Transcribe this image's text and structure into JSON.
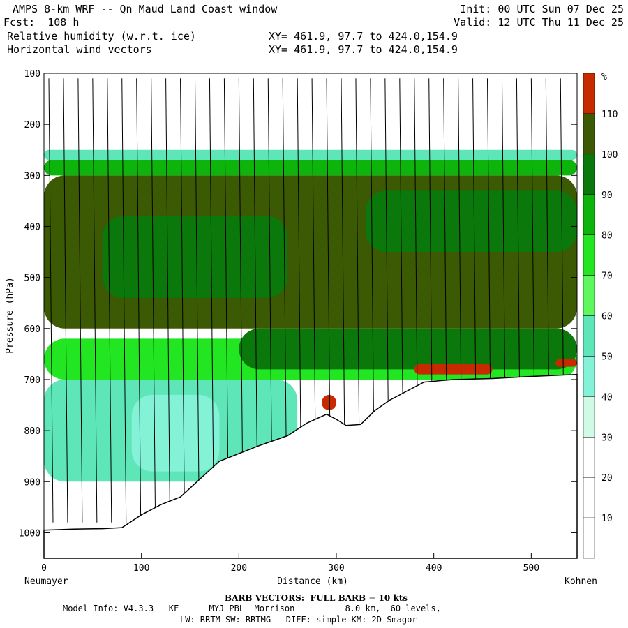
{
  "header": {
    "title": "AMPS 8-km WRF -- Qn Maud Land Coast window",
    "forecast": "Fcst:  108 h",
    "field1": "Relative humidity (w.r.t. ice)",
    "field2": "Horizontal wind vectors",
    "init": "Init: 00 UTC Sun 07 Dec 25",
    "valid": "Valid: 12 UTC Thu 11 Dec 25",
    "xy1": "XY= 461.9, 97.7 to 424.0,154.9",
    "xy2": "XY= 461.9, 97.7 to 424.0,154.9"
  },
  "footer": {
    "barb_note": "BARB VECTORS:  FULL BARB = 10 kts",
    "model_info": "Model Info: V4.3.3   KF      MYJ PBL  Morrison          8.0 km,  60 levels,",
    "physics": "LW: RRTM SW: RRTMG   DIFF: simple KM: 2D Smagor"
  },
  "chart_data": {
    "type": "cross-section",
    "title": "Relative humidity (w.r.t. ice)",
    "xlabel": "Distance (km)",
    "ylabel": "Pressure (hPa)",
    "x_end_left": "Neumayer",
    "x_end_right": "Kohnen",
    "xlim": [
      0,
      547
    ],
    "ylim": [
      100,
      1050
    ],
    "x_ticks": [
      0,
      100,
      200,
      300,
      400,
      500
    ],
    "y_ticks": [
      100,
      200,
      300,
      400,
      500,
      600,
      700,
      800,
      900,
      1000
    ],
    "colorbar": {
      "unit": "%",
      "levels": [
        10,
        20,
        30,
        40,
        50,
        60,
        70,
        80,
        90,
        100,
        110
      ],
      "colors": [
        "#ffffff",
        "#ffffff",
        "#ffffff",
        "#cffae6",
        "#84f2d6",
        "#5ee6b8",
        "#5ef75e",
        "#22e622",
        "#0cb40c",
        "#0a780a",
        "#3c5a04",
        "#c82a00"
      ]
    },
    "terrain_surface_hpa": [
      {
        "x": 0,
        "p": 995
      },
      {
        "x": 30,
        "p": 993
      },
      {
        "x": 60,
        "p": 992
      },
      {
        "x": 80,
        "p": 990
      },
      {
        "x": 100,
        "p": 965
      },
      {
        "x": 120,
        "p": 945
      },
      {
        "x": 140,
        "p": 930
      },
      {
        "x": 160,
        "p": 895
      },
      {
        "x": 180,
        "p": 860
      },
      {
        "x": 200,
        "p": 845
      },
      {
        "x": 220,
        "p": 830
      },
      {
        "x": 250,
        "p": 810
      },
      {
        "x": 270,
        "p": 785
      },
      {
        "x": 290,
        "p": 768
      },
      {
        "x": 300,
        "p": 778
      },
      {
        "x": 310,
        "p": 790
      },
      {
        "x": 325,
        "p": 788
      },
      {
        "x": 340,
        "p": 760
      },
      {
        "x": 355,
        "p": 740
      },
      {
        "x": 370,
        "p": 725
      },
      {
        "x": 390,
        "p": 705
      },
      {
        "x": 420,
        "p": 700
      },
      {
        "x": 460,
        "p": 698
      },
      {
        "x": 500,
        "p": 694
      },
      {
        "x": 547,
        "p": 690
      }
    ],
    "rh_layers": [
      {
        "rh": 55,
        "p_top": 700,
        "p_bot": 900,
        "x_from": 0,
        "x_to": 260
      },
      {
        "rh": 45,
        "p_top": 730,
        "p_bot": 880,
        "x_from": 90,
        "x_to": 180
      },
      {
        "rh": 75,
        "p_top": 620,
        "p_bot": 700,
        "x_from": 0,
        "x_to": 547
      },
      {
        "rh": 90,
        "p_top": 600,
        "p_bot": 680,
        "x_from": 200,
        "x_to": 547
      },
      {
        "rh": 105,
        "p_top": 300,
        "p_bot": 600,
        "x_from": 0,
        "x_to": 547
      },
      {
        "rh": 95,
        "p_top": 380,
        "p_bot": 540,
        "x_from": 60,
        "x_to": 250
      },
      {
        "rh": 95,
        "p_top": 330,
        "p_bot": 450,
        "x_from": 330,
        "x_to": 547
      },
      {
        "rh": 85,
        "p_top": 270,
        "p_bot": 300,
        "x_from": 0,
        "x_to": 547
      },
      {
        "rh": 50,
        "p_top": 250,
        "p_bot": 270,
        "x_from": 0,
        "x_to": 547
      },
      {
        "rh": 115,
        "p_top": 670,
        "p_bot": 690,
        "x_from": 380,
        "x_to": 460
      },
      {
        "rh": 115,
        "p_top": 730,
        "p_bot": 760,
        "x_from": 285,
        "x_to": 300
      },
      {
        "rh": 115,
        "p_top": 660,
        "p_bot": 675,
        "x_from": 525,
        "x_to": 547
      }
    ],
    "wind_barb_columns_km": [
      5,
      20,
      35,
      50,
      65,
      80,
      95,
      110,
      125,
      140,
      155,
      170,
      185,
      200,
      215,
      230,
      245,
      260,
      275,
      290,
      305,
      320,
      335,
      350,
      365,
      380,
      395,
      410,
      425,
      440,
      455,
      470,
      485,
      500,
      515,
      530
    ]
  }
}
